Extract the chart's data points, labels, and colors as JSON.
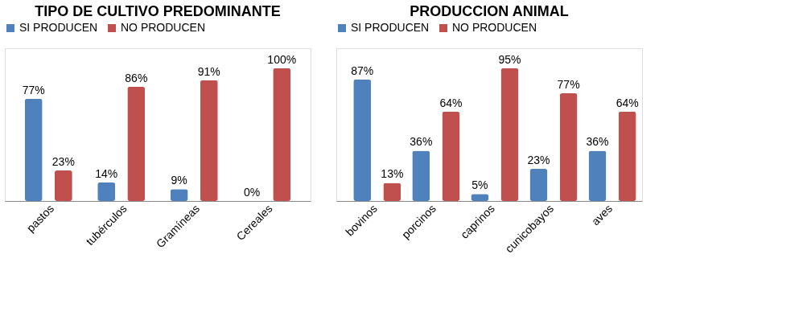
{
  "chart_data": [
    {
      "type": "bar",
      "title": "TIPO DE CULTIVO PREDOMINANTE",
      "categories": [
        "pastos",
        "tubérculos",
        "Gramíneas",
        "Cereales"
      ],
      "legend": "top",
      "series": [
        {
          "name": "SI PRODUCEN",
          "color": "#4f81bd",
          "values": [
            77,
            14,
            9,
            0
          ],
          "value_labels": [
            "77%",
            "14%",
            "9%",
            "0%"
          ]
        },
        {
          "name": "NO PRODUCEN",
          "color": "#c0504d",
          "values": [
            23,
            86,
            91,
            100
          ],
          "value_labels": [
            "23%",
            "86%",
            "91%",
            "100%"
          ]
        }
      ]
    },
    {
      "type": "bar",
      "title": "PRODUCCION ANIMAL",
      "categories": [
        "bovinos",
        "porcinos",
        "caprinos",
        "cunicobayos",
        "aves"
      ],
      "legend": "top",
      "series": [
        {
          "name": "SI PRODUCEN",
          "color": "#4f81bd",
          "values": [
            87,
            36,
            5,
            23,
            36
          ],
          "value_labels": [
            "87%",
            "36%",
            "5%",
            "23%",
            "36%"
          ]
        },
        {
          "name": "NO PRODUCEN",
          "color": "#c0504d",
          "values": [
            13,
            64,
            95,
            77,
            64
          ],
          "value_labels": [
            "13%",
            "64%",
            "95%",
            "77%",
            "64%"
          ]
        }
      ]
    }
  ]
}
